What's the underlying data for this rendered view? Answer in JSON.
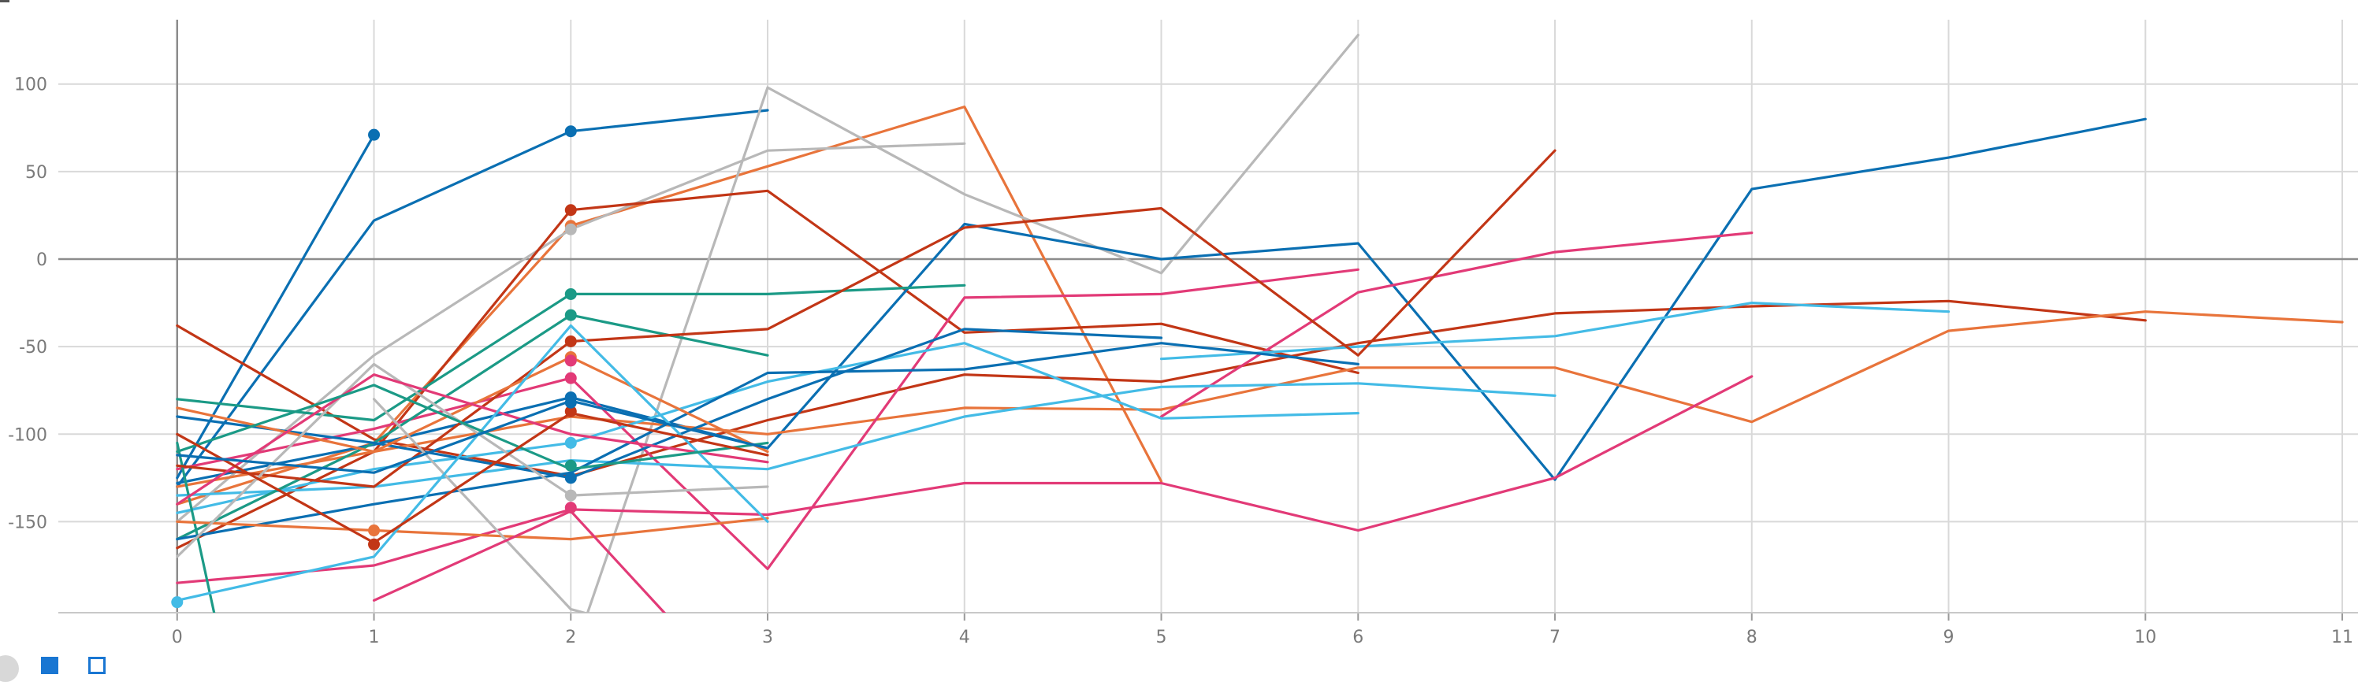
{
  "chart_data": {
    "type": "line",
    "x_ticks": [
      0,
      1,
      2,
      3,
      4,
      5,
      6,
      7,
      8,
      9,
      10,
      11
    ],
    "y_ticks": [
      100,
      50,
      0,
      -50,
      -100,
      -150
    ],
    "xlim": [
      -0.9,
      11.08
    ],
    "ylim": [
      -202,
      148
    ],
    "grid": true,
    "legend": "none",
    "series": [
      {
        "color": "#0a6fb2",
        "points": [
          [
            0,
            -125
          ],
          [
            1,
            71
          ]
        ],
        "markers": [
          [
            1,
            71
          ]
        ]
      },
      {
        "color": "#0a6fb2",
        "points": [
          [
            0,
            -130
          ],
          [
            1,
            22
          ],
          [
            2,
            73
          ],
          [
            3,
            85
          ]
        ],
        "markers": [
          [
            2,
            73
          ]
        ]
      },
      {
        "color": "#e8743b",
        "points": [
          [
            0,
            -140
          ],
          [
            1,
            -105
          ],
          [
            2,
            19
          ],
          [
            3,
            53
          ],
          [
            4,
            87
          ],
          [
            5,
            -127
          ]
        ],
        "markers": [
          [
            2,
            19
          ]
        ]
      },
      {
        "color": "#b8b8b8",
        "points": [
          [
            0,
            -150
          ],
          [
            1,
            -55
          ],
          [
            2,
            17
          ],
          [
            3,
            62
          ],
          [
            4,
            66
          ]
        ],
        "markers": [
          [
            2,
            17
          ]
        ]
      },
      {
        "color": "#b8b8b8",
        "points": [
          [
            2,
            -230
          ],
          [
            3,
            98
          ],
          [
            4,
            37
          ],
          [
            5,
            -8
          ],
          [
            6,
            128
          ]
        ]
      },
      {
        "color": "#c23616",
        "points": [
          [
            0,
            -165
          ],
          [
            1,
            -110
          ],
          [
            2,
            28
          ],
          [
            3,
            39
          ],
          [
            4,
            -42
          ],
          [
            5,
            -37
          ],
          [
            6,
            -65
          ]
        ],
        "markers": [
          [
            2,
            28
          ]
        ]
      },
      {
        "color": "#c23616",
        "points": [
          [
            0,
            -38
          ],
          [
            1,
            -103
          ],
          [
            2,
            -124
          ],
          [
            3,
            -92
          ],
          [
            4,
            -66
          ],
          [
            5,
            -70
          ],
          [
            6,
            -48
          ],
          [
            7,
            -31
          ],
          [
            8,
            -27
          ],
          [
            9,
            -24
          ],
          [
            10,
            -35
          ]
        ]
      },
      {
        "color": "#0a6fb2",
        "points": [
          [
            0,
            -128
          ],
          [
            1,
            -106
          ],
          [
            2,
            -79
          ],
          [
            3,
            -108
          ],
          [
            4,
            20
          ],
          [
            5,
            0
          ],
          [
            6,
            9
          ],
          [
            7,
            -126
          ],
          [
            8,
            40
          ],
          [
            9,
            58
          ],
          [
            10,
            80
          ]
        ],
        "markers": [
          [
            2,
            -79
          ]
        ]
      },
      {
        "color": "#e8743b",
        "points": [
          [
            0,
            -130
          ],
          [
            1,
            -110
          ],
          [
            2,
            -90
          ],
          [
            3,
            -100
          ],
          [
            4,
            -85
          ],
          [
            5,
            -86
          ],
          [
            6,
            -62
          ],
          [
            7,
            -62
          ],
          [
            8,
            -93
          ],
          [
            9,
            -41
          ],
          [
            10,
            -30
          ],
          [
            11,
            -36
          ]
        ]
      },
      {
        "color": "#e23a77",
        "points": [
          [
            0,
            -185
          ],
          [
            1,
            -175
          ],
          [
            2,
            -143
          ],
          [
            3,
            -146
          ],
          [
            4,
            -128
          ],
          [
            5,
            -128
          ],
          [
            6,
            -155
          ],
          [
            7,
            -125
          ],
          [
            8,
            -67
          ]
        ]
      },
      {
        "color": "#e23a77",
        "points": [
          [
            0,
            -120
          ],
          [
            1,
            -97
          ],
          [
            2,
            -68
          ],
          [
            3,
            -177
          ],
          [
            4,
            -22
          ],
          [
            5,
            -20
          ],
          [
            6,
            -6
          ]
        ],
        "markers": [
          [
            2,
            -68
          ]
        ]
      },
      {
        "color": "#e23a77",
        "points": [
          [
            5,
            -90
          ],
          [
            6,
            -19
          ],
          [
            7,
            4
          ],
          [
            8,
            15
          ]
        ]
      },
      {
        "color": "#43bbe6",
        "points": [
          [
            0,
            -135
          ],
          [
            1,
            -130
          ],
          [
            2,
            -115
          ],
          [
            3,
            -120
          ],
          [
            4,
            -90
          ],
          [
            5,
            -73
          ],
          [
            6,
            -71
          ],
          [
            7,
            -78
          ]
        ]
      },
      {
        "color": "#43bbe6",
        "points": [
          [
            0,
            -145
          ],
          [
            1,
            -120
          ],
          [
            2,
            -105
          ],
          [
            3,
            -70
          ],
          [
            4,
            -48
          ],
          [
            5,
            -91
          ],
          [
            6,
            -88
          ]
        ],
        "markers": [
          [
            2,
            -105
          ]
        ]
      },
      {
        "color": "#43bbe6",
        "points": [
          [
            5,
            -57
          ],
          [
            6,
            -50
          ],
          [
            7,
            -44
          ],
          [
            8,
            -25
          ],
          [
            9,
            -30
          ]
        ]
      },
      {
        "color": "#1b9a86",
        "points": [
          [
            0,
            -80
          ],
          [
            1,
            -92
          ],
          [
            2,
            -20
          ],
          [
            3,
            -20
          ],
          [
            4,
            -15
          ]
        ],
        "markers": [
          [
            2,
            -20
          ]
        ]
      },
      {
        "color": "#1b9a86",
        "points": [
          [
            0,
            -105
          ],
          [
            0.3,
            -260
          ]
        ]
      },
      {
        "color": "#1b9a86",
        "points": [
          [
            0,
            -160
          ],
          [
            1,
            -105
          ],
          [
            2,
            -32
          ],
          [
            3,
            -55
          ]
        ],
        "markers": [
          [
            2,
            -32
          ]
        ]
      },
      {
        "color": "#c23616",
        "points": [
          [
            0,
            -118
          ],
          [
            1,
            -130
          ],
          [
            2,
            -47
          ],
          [
            3,
            -40
          ],
          [
            4,
            18
          ],
          [
            5,
            29
          ],
          [
            6,
            -55
          ],
          [
            7,
            62
          ]
        ],
        "markers": [
          [
            2,
            -47
          ]
        ]
      },
      {
        "color": "#0a6fb2",
        "points": [
          [
            0,
            -90
          ],
          [
            1,
            -105
          ],
          [
            2,
            -125
          ],
          [
            3,
            -80
          ],
          [
            4,
            -40
          ],
          [
            5,
            -45
          ]
        ],
        "markers": [
          [
            2,
            -125
          ]
        ]
      },
      {
        "color": "#0a6fb2",
        "points": [
          [
            0,
            -160
          ],
          [
            1,
            -140
          ],
          [
            2,
            -122
          ],
          [
            3,
            -65
          ],
          [
            4,
            -63
          ],
          [
            5,
            -48
          ],
          [
            6,
            -60
          ]
        ]
      },
      {
        "color": "#e8743b",
        "points": [
          [
            0,
            -150
          ],
          [
            1,
            -155
          ],
          [
            2,
            -160
          ],
          [
            3,
            -148
          ]
        ],
        "markers": [
          [
            1,
            -155
          ],
          [
            2,
            -56
          ]
        ]
      },
      {
        "color": "#e8743b",
        "points": [
          [
            0,
            -85
          ],
          [
            1,
            -110
          ],
          [
            2,
            -56
          ],
          [
            3,
            -110
          ]
        ]
      },
      {
        "color": "#b8b8b8",
        "points": [
          [
            0,
            -170
          ],
          [
            1,
            -60
          ],
          [
            2,
            -135
          ],
          [
            3,
            -130
          ]
        ],
        "markers": [
          [
            2,
            -135
          ]
        ]
      },
      {
        "color": "#b8b8b8",
        "points": [
          [
            1,
            -80
          ],
          [
            2,
            -200
          ],
          [
            3,
            -230
          ]
        ]
      },
      {
        "color": "#e23a77",
        "points": [
          [
            0,
            -140
          ],
          [
            1,
            -66
          ],
          [
            2,
            -100
          ],
          [
            3,
            -116
          ]
        ],
        "markers": [
          [
            2,
            -142
          ],
          [
            2,
            -58
          ]
        ]
      },
      {
        "color": "#e23a77",
        "points": [
          [
            1,
            -195
          ],
          [
            2,
            -144
          ],
          [
            2.5,
            -205
          ]
        ]
      },
      {
        "color": "#43bbe6",
        "points": [
          [
            0,
            -195
          ],
          [
            1,
            -170
          ],
          [
            2,
            -38
          ],
          [
            3,
            -150
          ]
        ],
        "markers": [
          [
            0,
            -196
          ]
        ]
      },
      {
        "color": "#1b9a86",
        "points": [
          [
            0,
            -110
          ],
          [
            1,
            -72
          ],
          [
            2,
            -120
          ],
          [
            3,
            -105
          ]
        ],
        "markers": [
          [
            2,
            -118
          ]
        ]
      },
      {
        "color": "#c23616",
        "points": [
          [
            0,
            -100
          ],
          [
            1,
            -162
          ],
          [
            2,
            -88
          ],
          [
            3,
            -112
          ]
        ],
        "markers": [
          [
            1,
            -163
          ],
          [
            2,
            -87
          ]
        ]
      },
      {
        "color": "#0a6fb2",
        "points": [
          [
            0,
            -112
          ],
          [
            1,
            -122
          ],
          [
            2,
            -81
          ],
          [
            3,
            -108
          ]
        ],
        "markers": [
          [
            2,
            -82
          ]
        ]
      }
    ]
  },
  "toolbar": {
    "icons": [
      "scroll-indicator-icon",
      "filled-square-icon",
      "outline-square-icon"
    ],
    "accent_color": "#1976d2"
  }
}
